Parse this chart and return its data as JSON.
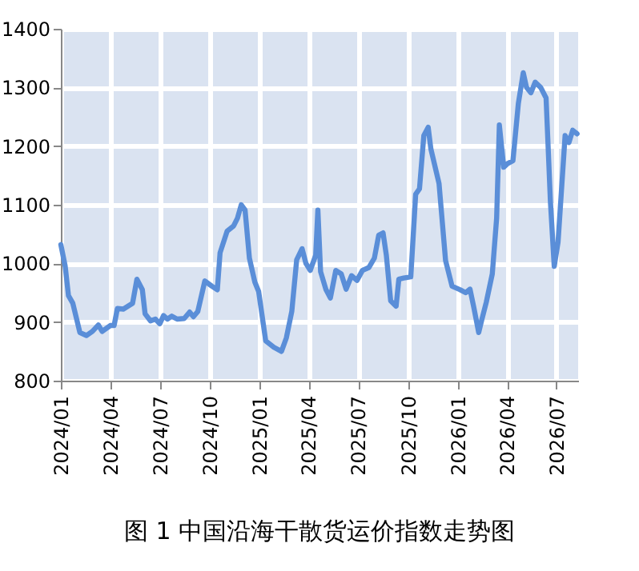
{
  "chart_data": {
    "type": "line",
    "title": "图 1 中国沿海干散货运价指数走势图",
    "x": [
      "2024-01-01",
      "2024-01-09",
      "2024-01-15",
      "2024-01-23",
      "2024-02-05",
      "2024-02-17",
      "2024-02-28",
      "2024-03-10",
      "2024-03-17",
      "2024-04-01",
      "2024-04-08",
      "2024-04-14",
      "2024-04-25",
      "2024-05-12",
      "2024-05-20",
      "2024-05-30",
      "2024-06-04",
      "2024-06-14",
      "2024-06-23",
      "2024-07-01",
      "2024-07-08",
      "2024-07-15",
      "2024-07-23",
      "2024-08-02",
      "2024-08-15",
      "2024-08-25",
      "2024-09-01",
      "2024-09-09",
      "2024-09-22",
      "2024-10-05",
      "2024-10-15",
      "2024-10-20",
      "2024-11-02",
      "2024-11-14",
      "2024-11-21",
      "2024-11-28",
      "2024-12-05",
      "2024-12-13",
      "2024-12-23",
      "2024-12-30",
      "2025-01-12",
      "2025-01-27",
      "2025-02-10",
      "2025-02-19",
      "2025-03-01",
      "2025-03-10",
      "2025-03-20",
      "2025-03-27",
      "2025-04-04",
      "2025-04-14",
      "2025-04-18",
      "2025-04-23",
      "2025-05-03",
      "2025-05-11",
      "2025-05-21",
      "2025-05-31",
      "2025-06-09",
      "2025-06-19",
      "2025-06-29",
      "2025-07-09",
      "2025-07-21",
      "2025-07-31",
      "2025-08-08",
      "2025-08-16",
      "2025-08-22",
      "2025-08-30",
      "2025-09-09",
      "2025-09-14",
      "2025-09-23",
      "2025-10-06",
      "2025-10-15",
      "2025-10-22",
      "2025-10-30",
      "2025-11-07",
      "2025-11-12",
      "2025-11-27",
      "2025-12-09",
      "2025-12-21",
      "2026-01-05",
      "2026-01-15",
      "2026-01-23",
      "2026-01-30",
      "2026-02-08",
      "2026-02-14",
      "2026-02-22",
      "2026-03-05",
      "2026-03-13",
      "2026-03-18",
      "2026-03-26",
      "2026-04-02",
      "2026-04-12",
      "2026-04-22",
      "2026-05-01",
      "2026-05-07",
      "2026-05-15",
      "2026-05-23",
      "2026-06-02",
      "2026-06-12",
      "2026-06-20",
      "2026-06-27",
      "2026-07-04",
      "2026-07-17",
      "2026-07-24",
      "2026-07-31",
      "2026-08-08"
    ],
    "series": [
      {
        "color": "#5a8ed8",
        "values": [
          1032,
          995,
          945,
          932,
          882,
          877,
          884,
          895,
          884,
          894,
          894,
          923,
          922,
          932,
          973,
          955,
          914,
          902,
          905,
          897,
          911,
          905,
          910,
          905,
          906,
          917,
          909,
          918,
          970,
          961,
          955,
          1018,
          1055,
          1064,
          1077,
          1100,
          1091,
          1009,
          968,
          952,
          868,
          857,
          850,
          873,
          918,
          1006,
          1025,
          1000,
          988,
          1014,
          1091,
          986,
          955,
          941,
          988,
          982,
          956,
          979,
          971,
          988,
          993,
          1009,
          1048,
          1052,
          1014,
          936,
          927,
          973,
          975,
          977,
          1118,
          1127,
          1218,
          1232,
          1195,
          1136,
          1005,
          961,
          955,
          950,
          956,
          925,
          882,
          905,
          934,
          982,
          1077,
          1236,
          1164,
          1170,
          1175,
          1273,
          1325,
          1300,
          1291,
          1309,
          1300,
          1282,
          1105,
          995,
          1036,
          1218,
          1206,
          1227,
          1221
        ]
      }
    ],
    "xlim": [
      "2024-01-01",
      "2026-08-10"
    ],
    "xticks": [
      {
        "value": "2024-01-01",
        "label": "2024/01"
      },
      {
        "value": "2024-04-01",
        "label": "2024/04"
      },
      {
        "value": "2024-07-01",
        "label": "2024/07"
      },
      {
        "value": "2024-10-01",
        "label": "2024/10"
      },
      {
        "value": "2025-01-01",
        "label": "2025/01"
      },
      {
        "value": "2025-04-01",
        "label": "2025/04"
      },
      {
        "value": "2025-07-01",
        "label": "2025/07"
      },
      {
        "value": "2025-10-01",
        "label": "2025/10"
      },
      {
        "value": "2026-01-01",
        "label": "2026/01"
      },
      {
        "value": "2026-04-01",
        "label": "2026/04"
      },
      {
        "value": "2026-07-01",
        "label": "2026/07"
      }
    ],
    "ylim": [
      800,
      1400
    ],
    "yticks": [
      800,
      900,
      1000,
      1100,
      1200,
      1300,
      1400
    ],
    "grid": true,
    "line_style": "solid",
    "marker": "none"
  }
}
